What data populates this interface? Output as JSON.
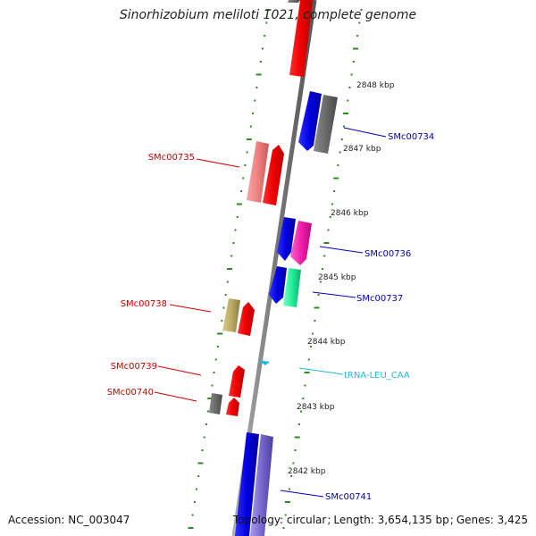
{
  "title": "Sinorhizobium meliloti 1021, complete genome",
  "footer": {
    "accession_label": "Accession:",
    "accession": "NC_003047",
    "topology_label": "Topology:",
    "topology": "circular",
    "length_label": "Length:",
    "length": "3,654,135 bp",
    "genes_label": "Genes:",
    "genes": "3,425"
  },
  "colors": {
    "backbone": "#8a8a8a",
    "tick": "#2e8b22",
    "label_red": "#cc0000",
    "label_blue": "#0000bb",
    "label_cyan": "#22b8dd"
  },
  "ruler": [
    "2848 kbp",
    "2847 kbp",
    "2846 kbp",
    "2845 kbp",
    "2844 kbp",
    "2843 kbp",
    "2842 kbp"
  ],
  "features": [
    {
      "id": "SMc00734",
      "color": "#0000dd"
    },
    {
      "id": "SMc00735",
      "color": "#ee8080"
    },
    {
      "id": "SMc00736",
      "color": "#ee1faa"
    },
    {
      "id": "SMc00737",
      "color": "#22ee99"
    },
    {
      "id": "SMc00738",
      "color": "#bbaa66"
    },
    {
      "id": "SMc00739",
      "color": "#ee0000"
    },
    {
      "id": "SMc00740",
      "color": "#666666"
    },
    {
      "id": "tRNA-LEU_CAA",
      "color": "#22b8dd"
    },
    {
      "id": "SMc00741",
      "color": "#7766cc"
    }
  ]
}
